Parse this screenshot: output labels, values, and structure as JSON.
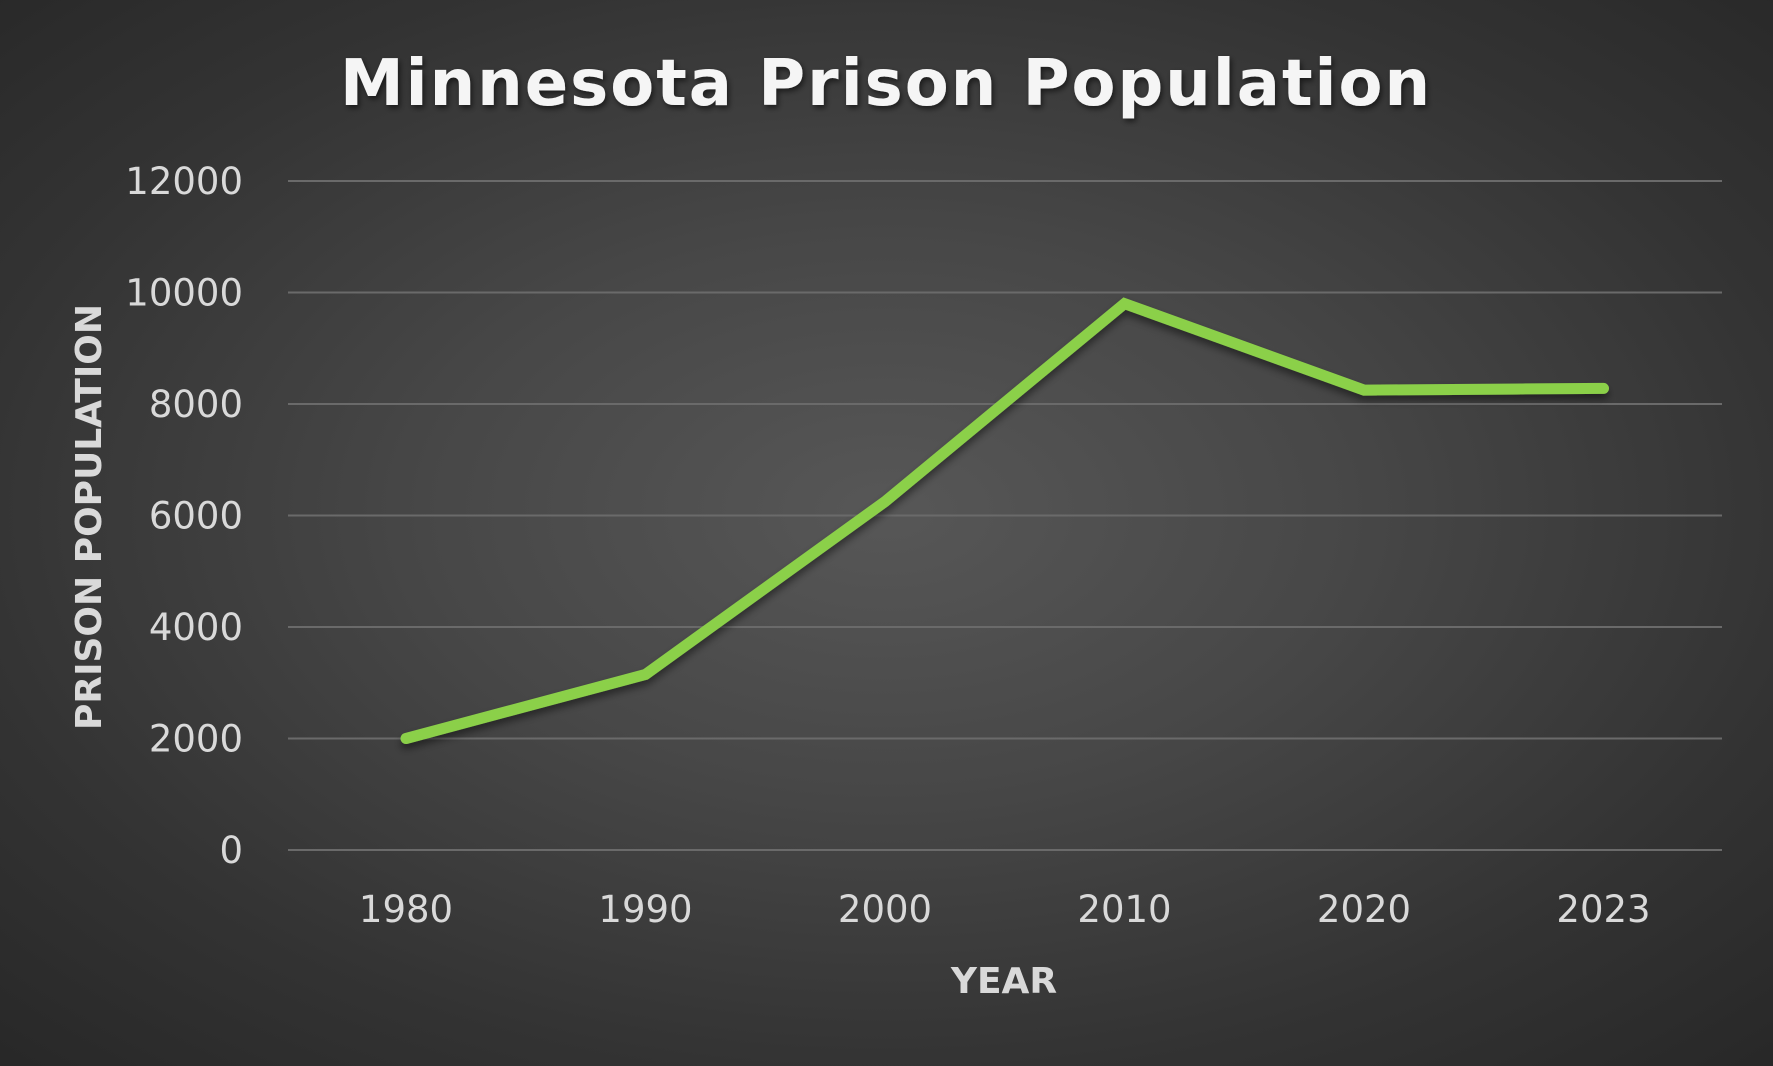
{
  "chart_data": {
    "type": "line",
    "title": "Minnesota Prison Population",
    "xlabel": "YEAR",
    "ylabel": "PRISON POPULATION",
    "categories": [
      "1980",
      "1990",
      "2000",
      "2010",
      "2020",
      "2023"
    ],
    "series": [
      {
        "values": [
          2000,
          3150,
          6250,
          9800,
          8250,
          8280
        ],
        "color": "#8BD04A"
      }
    ],
    "ylim": [
      0,
      12000
    ],
    "yticks": [
      "0",
      "2000",
      "4000",
      "6000",
      "8000",
      "10000",
      "12000"
    ],
    "grid": true,
    "legend": "none",
    "background_color": "#474747",
    "text_color": "#D9D9D9",
    "title_color": "#F5F5F5"
  }
}
